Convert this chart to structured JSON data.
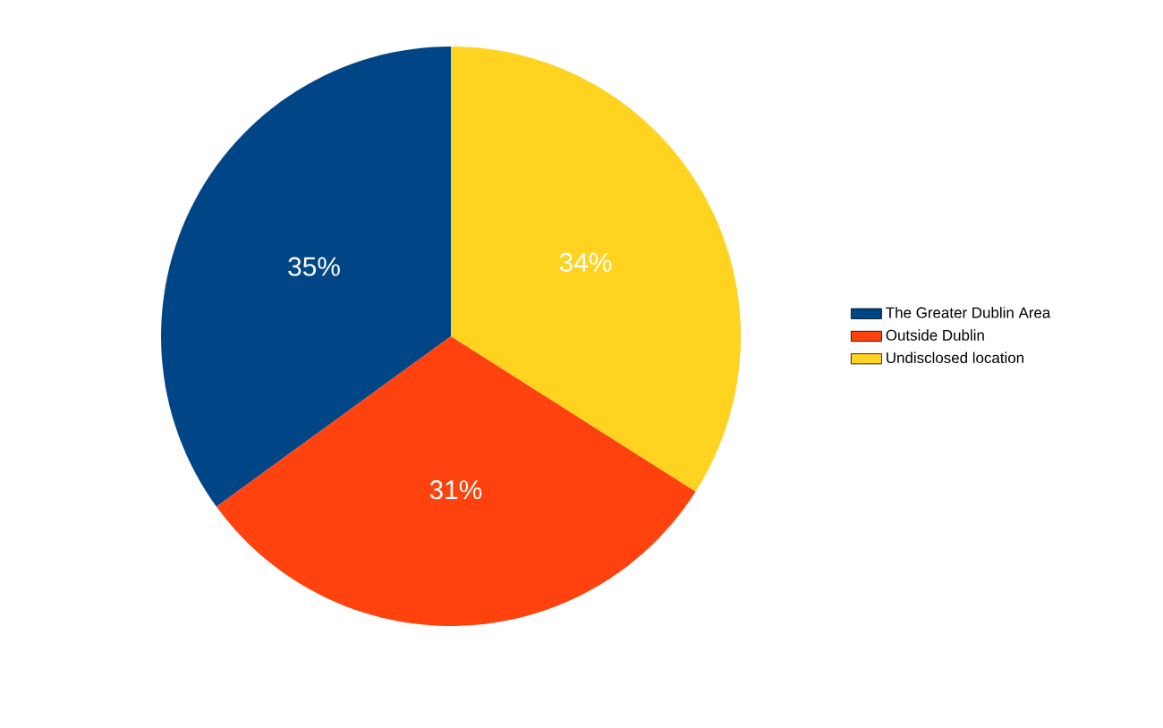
{
  "chart_data": {
    "type": "pie",
    "categories": [
      "The Greater Dublin Area",
      "Outside Dublin",
      "Undisclosed location"
    ],
    "values": [
      35,
      31,
      34
    ],
    "value_labels": [
      "35%",
      "31%",
      "34%"
    ],
    "colors": [
      "#004586",
      "#ff420e",
      "#ffd320"
    ],
    "legend": "right"
  }
}
